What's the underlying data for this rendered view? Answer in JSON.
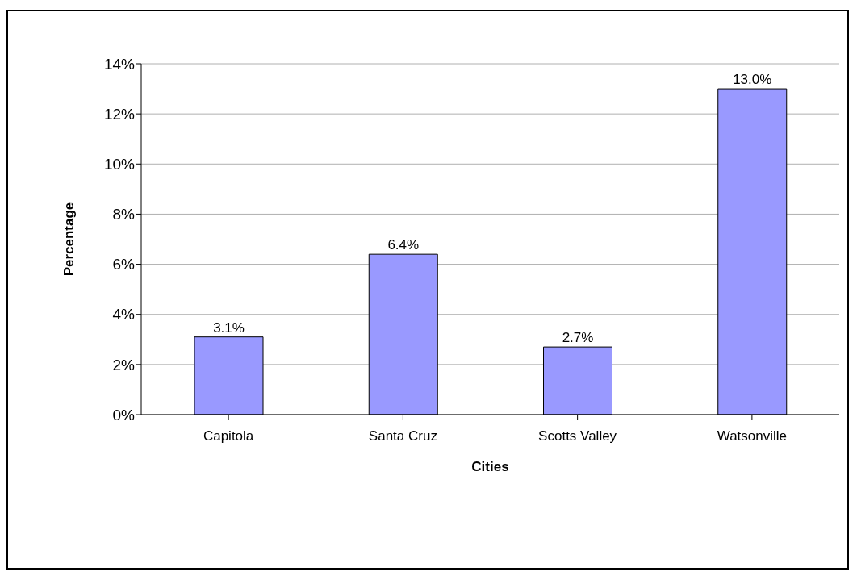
{
  "chart_data": {
    "type": "bar",
    "xlabel": "Cities",
    "ylabel": "Percentage",
    "categories": [
      "Capitola",
      "Santa Cruz",
      "Scotts Valley",
      "Watsonville"
    ],
    "values": [
      3.1,
      6.4,
      2.7,
      13.0
    ],
    "value_labels": [
      "3.1%",
      "6.4%",
      "2.7%",
      "13.0%"
    ],
    "color": "#9999ff",
    "ylim": [
      0,
      14
    ],
    "yticks": [
      {
        "value": 0,
        "label": "0%"
      },
      {
        "value": 2,
        "label": "2%"
      },
      {
        "value": 4,
        "label": "4%"
      },
      {
        "value": 6,
        "label": "6%"
      },
      {
        "value": 8,
        "label": "8%"
      },
      {
        "value": 10,
        "label": "10%"
      },
      {
        "value": 12,
        "label": "12%"
      },
      {
        "value": 14,
        "label": "14%"
      }
    ],
    "grid": "y"
  }
}
